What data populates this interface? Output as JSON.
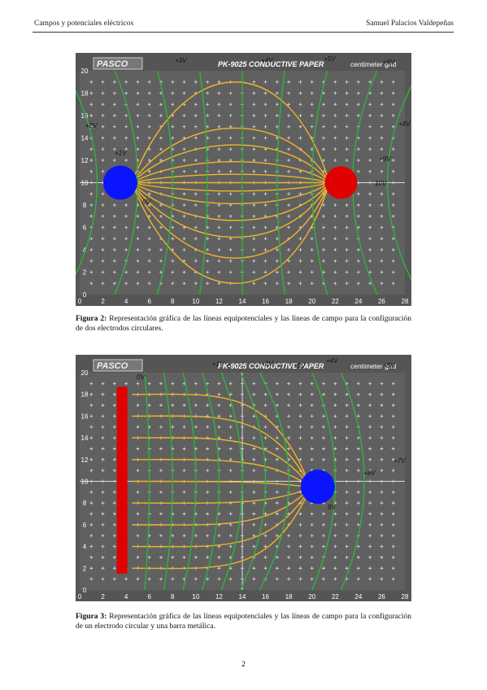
{
  "header": {
    "left": "Campos y potenciales eléctricos",
    "right": "Samuel Palacios Valdepeñas"
  },
  "figures": [
    {
      "brand": "PASCO",
      "paper": "PK-9025 CONDUCTIVE PAPER",
      "grid_label": "centimeter grid",
      "x_ticks": [
        0,
        2,
        4,
        6,
        8,
        10,
        12,
        14,
        16,
        18,
        20,
        22,
        24,
        26,
        28
      ],
      "y_ticks": [
        0,
        2,
        4,
        6,
        8,
        10,
        12,
        14,
        16,
        18,
        20
      ],
      "annotations": [
        "+3V",
        "+4V",
        "+5V",
        "+6V",
        "+7V",
        "+2V",
        "+1V",
        "0V",
        "10V",
        "+9V",
        "+8V"
      ],
      "caption_label": "Figura 2:",
      "caption_text": "Representación gráfica de las líneas equipotenciales y las líneas de campo para la configuración de dos electrodos circulares."
    },
    {
      "brand": "PASCO",
      "paper": "PK-9025 CONDUCTIVE PAPER",
      "grid_label": "centimeter grid",
      "x_ticks": [
        0,
        2,
        4,
        6,
        8,
        10,
        12,
        14,
        16,
        18,
        20,
        22,
        24,
        26,
        28
      ],
      "y_ticks": [
        0,
        2,
        4,
        6,
        8,
        10,
        12,
        14,
        16,
        18,
        20
      ],
      "annotations": [
        "0V",
        "+1V",
        "+2V",
        "+3V",
        "+4V",
        "+5V",
        "+6V",
        "+7V",
        "+8V",
        "8V"
      ],
      "caption_label": "Figura 3:",
      "caption_text": "Representación gráfica de las líneas equipotenciales y las líneas de campo para la configuración de un electrodo circular y una barra metálica."
    }
  ],
  "page_number": "2"
}
